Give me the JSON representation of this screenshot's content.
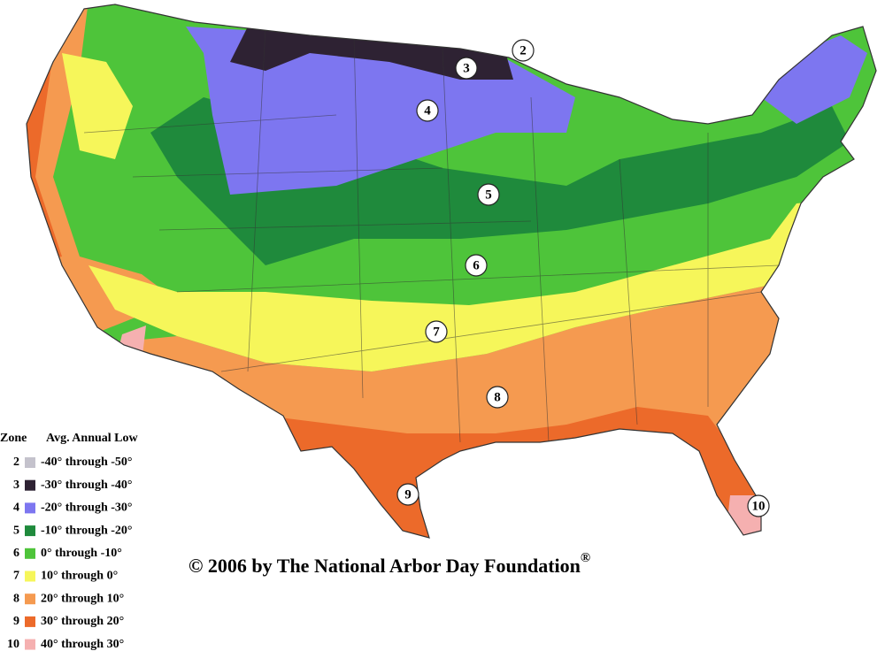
{
  "legend": {
    "zone_header": "Zone",
    "low_header": "Avg. Annual Low",
    "rows": [
      {
        "zone": "2",
        "range": "-40° through -50°",
        "color": "#c4c2cc"
      },
      {
        "zone": "3",
        "range": "-30° through -40°",
        "color": "#2e2233"
      },
      {
        "zone": "4",
        "range": "-20° through -30°",
        "color": "#7d76f0"
      },
      {
        "zone": "5",
        "range": "-10° through -20°",
        "color": "#1f8a3c"
      },
      {
        "zone": "6",
        "range": "0° through -10°",
        "color": "#4ec43a"
      },
      {
        "zone": "7",
        "range": "10° through 0°",
        "color": "#f6f65a"
      },
      {
        "zone": "8",
        "range": "20° through 10°",
        "color": "#f59a50"
      },
      {
        "zone": "9",
        "range": "30° through 20°",
        "color": "#ec6a2a"
      },
      {
        "zone": "10",
        "range": "40° through 30°",
        "color": "#f5b0b0"
      }
    ]
  },
  "map_labels": [
    "2",
    "3",
    "4",
    "5",
    "6",
    "7",
    "8",
    "9",
    "10"
  ],
  "copyright": {
    "text": "© 2006 by The National Arbor Day Foundation",
    "mark": "®"
  }
}
